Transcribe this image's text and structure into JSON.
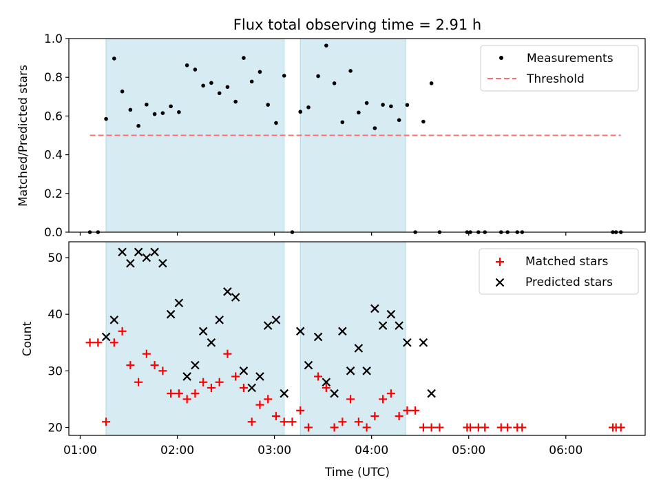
{
  "title": "Flux total observing time = 2.91 h",
  "colors": {
    "shade": "#add8e6",
    "measurement": "#000000",
    "threshold": "#ff6e6e",
    "matched": "#ff0000",
    "predicted": "#000000"
  },
  "shaded_intervals": [
    [
      "01:16",
      "03:06"
    ],
    [
      "03:16",
      "04:21"
    ]
  ],
  "chart_data": [
    {
      "type": "scatter",
      "ylabel": "Matched/Predicted stars",
      "ylim": [
        0,
        1.0
      ],
      "yticks": [
        0.0,
        0.2,
        0.4,
        0.6,
        0.8,
        1.0
      ],
      "ytick_labels": [
        "0.0",
        "0.2",
        "0.4",
        "0.6",
        "0.8",
        "1.0"
      ],
      "legend_position": "top-right",
      "legend": [
        "Measurements",
        "Threshold"
      ],
      "series": [
        {
          "name": "Measurements",
          "marker": "dot",
          "points": [
            [
              "01:06",
              0
            ],
            [
              "01:11",
              0
            ],
            [
              "01:16",
              0.585
            ],
            [
              "01:21",
              0.897
            ],
            [
              "01:26",
              0.727
            ],
            [
              "01:31",
              0.632
            ],
            [
              "01:36",
              0.549
            ],
            [
              "01:41",
              0.659
            ],
            [
              "01:46",
              0.61
            ],
            [
              "01:51",
              0.615
            ],
            [
              "01:56",
              0.65
            ],
            [
              "02:01",
              0.62
            ],
            [
              "02:06",
              0.862
            ],
            [
              "02:11",
              0.84
            ],
            [
              "02:16",
              0.757
            ],
            [
              "02:21",
              0.771
            ],
            [
              "02:26",
              0.718
            ],
            [
              "02:31",
              0.75
            ],
            [
              "02:36",
              0.674
            ],
            [
              "02:41",
              0.9
            ],
            [
              "02:46",
              0.778
            ],
            [
              "02:51",
              0.828
            ],
            [
              "02:56",
              0.658
            ],
            [
              "03:01",
              0.564
            ],
            [
              "03:06",
              0.808
            ],
            [
              "03:11",
              0
            ],
            [
              "03:16",
              0.622
            ],
            [
              "03:21",
              0.645
            ],
            [
              "03:27",
              0.806
            ],
            [
              "03:32",
              0.964
            ],
            [
              "03:37",
              0.769
            ],
            [
              "03:42",
              0.568
            ],
            [
              "03:47",
              0.833
            ],
            [
              "03:52",
              0.618
            ],
            [
              "03:57",
              0.667
            ],
            [
              "04:02",
              0.537
            ],
            [
              "04:07",
              0.658
            ],
            [
              "04:12",
              0.65
            ],
            [
              "04:17",
              0.579
            ],
            [
              "04:22",
              0.657
            ],
            [
              "04:27",
              0
            ],
            [
              "04:32",
              0.571
            ],
            [
              "04:37",
              0.769
            ],
            [
              "04:42",
              0
            ],
            [
              "04:59",
              0
            ],
            [
              "05:01",
              0
            ],
            [
              "05:06",
              0
            ],
            [
              "05:10",
              0
            ],
            [
              "05:20",
              0
            ],
            [
              "05:24",
              0
            ],
            [
              "05:30",
              0
            ],
            [
              "05:33",
              0
            ],
            [
              "06:29",
              0
            ],
            [
              "06:31",
              0
            ],
            [
              "06:34",
              0
            ]
          ]
        },
        {
          "name": "Threshold",
          "marker": "dashed-line",
          "points": [
            [
              "01:06",
              0.5
            ],
            [
              "06:34",
              0.5
            ]
          ]
        }
      ]
    },
    {
      "type": "scatter",
      "xlabel": "Time (UTC)",
      "ylabel": "Count",
      "ylim": [
        18.6,
        52.8
      ],
      "yticks": [
        20,
        30,
        40,
        50
      ],
      "ytick_labels": [
        "20",
        "30",
        "40",
        "50"
      ],
      "xlim": [
        "00:53",
        "06:49"
      ],
      "xticks": [
        "01:00",
        "02:00",
        "03:00",
        "04:00",
        "05:00",
        "06:00"
      ],
      "xtick_labels": [
        "01:00",
        "02:00",
        "03:00",
        "04:00",
        "05:00",
        "06:00"
      ],
      "legend_position": "top-right",
      "legend": [
        "Matched stars",
        "Predicted stars"
      ],
      "series": [
        {
          "name": "Matched stars",
          "marker": "plus",
          "points": [
            [
              "01:06",
              35
            ],
            [
              "01:11",
              35
            ],
            [
              "01:16",
              21
            ],
            [
              "01:21",
              35
            ],
            [
              "01:26",
              37
            ],
            [
              "01:31",
              31
            ],
            [
              "01:36",
              28
            ],
            [
              "01:41",
              33
            ],
            [
              "01:46",
              31
            ],
            [
              "01:51",
              30
            ],
            [
              "01:56",
              26
            ],
            [
              "02:01",
              26
            ],
            [
              "02:06",
              25
            ],
            [
              "02:11",
              26
            ],
            [
              "02:16",
              28
            ],
            [
              "02:21",
              27
            ],
            [
              "02:26",
              28
            ],
            [
              "02:31",
              33
            ],
            [
              "02:36",
              29
            ],
            [
              "02:41",
              27
            ],
            [
              "02:46",
              21
            ],
            [
              "02:51",
              24
            ],
            [
              "02:56",
              25
            ],
            [
              "03:01",
              22
            ],
            [
              "03:06",
              21
            ],
            [
              "03:11",
              21
            ],
            [
              "03:16",
              23
            ],
            [
              "03:21",
              20
            ],
            [
              "03:27",
              29
            ],
            [
              "03:32",
              27
            ],
            [
              "03:37",
              20
            ],
            [
              "03:42",
              21
            ],
            [
              "03:47",
              25
            ],
            [
              "03:52",
              21
            ],
            [
              "03:57",
              20
            ],
            [
              "04:02",
              22
            ],
            [
              "04:07",
              25
            ],
            [
              "04:12",
              26
            ],
            [
              "04:17",
              22
            ],
            [
              "04:22",
              23
            ],
            [
              "04:27",
              23
            ],
            [
              "04:32",
              20
            ],
            [
              "04:37",
              20
            ],
            [
              "04:42",
              20
            ],
            [
              "04:59",
              20
            ],
            [
              "05:01",
              20
            ],
            [
              "05:06",
              20
            ],
            [
              "05:10",
              20
            ],
            [
              "05:20",
              20
            ],
            [
              "05:24",
              20
            ],
            [
              "05:30",
              20
            ],
            [
              "05:33",
              20
            ],
            [
              "06:29",
              20
            ],
            [
              "06:31",
              20
            ],
            [
              "06:34",
              20
            ]
          ]
        },
        {
          "name": "Predicted stars",
          "marker": "x",
          "points": [
            [
              "01:16",
              36
            ],
            [
              "01:21",
              39
            ],
            [
              "01:26",
              51
            ],
            [
              "01:31",
              49
            ],
            [
              "01:36",
              51
            ],
            [
              "01:41",
              50
            ],
            [
              "01:46",
              51
            ],
            [
              "01:51",
              49
            ],
            [
              "01:56",
              40
            ],
            [
              "02:01",
              42
            ],
            [
              "02:06",
              29
            ],
            [
              "02:11",
              31
            ],
            [
              "02:16",
              37
            ],
            [
              "02:21",
              35
            ],
            [
              "02:26",
              39
            ],
            [
              "02:31",
              44
            ],
            [
              "02:36",
              43
            ],
            [
              "02:41",
              30
            ],
            [
              "02:46",
              27
            ],
            [
              "02:51",
              29
            ],
            [
              "02:56",
              38
            ],
            [
              "03:01",
              39
            ],
            [
              "03:06",
              26
            ],
            [
              "03:16",
              37
            ],
            [
              "03:21",
              31
            ],
            [
              "03:27",
              36
            ],
            [
              "03:32",
              28
            ],
            [
              "03:37",
              26
            ],
            [
              "03:42",
              37
            ],
            [
              "03:47",
              30
            ],
            [
              "03:52",
              34
            ],
            [
              "03:57",
              30
            ],
            [
              "04:02",
              41
            ],
            [
              "04:07",
              38
            ],
            [
              "04:12",
              40
            ],
            [
              "04:17",
              38
            ],
            [
              "04:22",
              35
            ],
            [
              "04:32",
              35
            ],
            [
              "04:37",
              26
            ]
          ]
        }
      ]
    }
  ]
}
